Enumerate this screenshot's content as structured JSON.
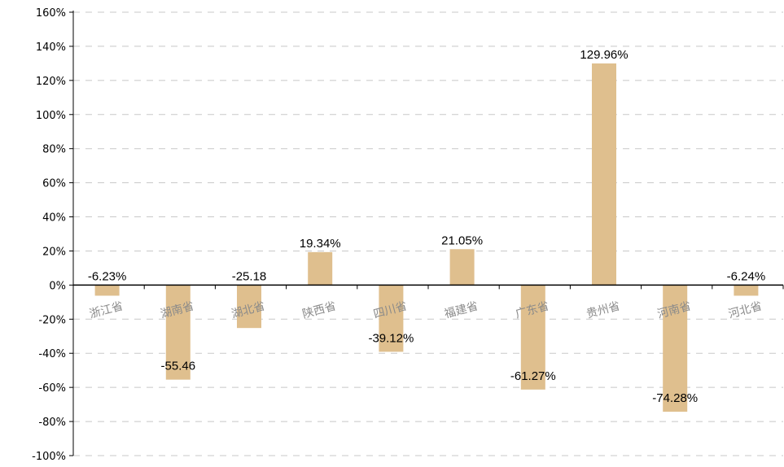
{
  "chart_data": {
    "type": "bar",
    "categories": [
      "浙江省",
      "湖南省",
      "湖北省",
      "陕西省",
      "四川省",
      "福建省",
      "广东省",
      "贵州省",
      "河南省",
      "河北省"
    ],
    "values": [
      -6.23,
      -55.46,
      -25.18,
      19.34,
      -39.12,
      21.05,
      -61.27,
      129.96,
      -74.28,
      -6.24
    ],
    "data_labels": [
      "-6.23%",
      "-55.46",
      "-25.18",
      "19.34%",
      "-39.12%",
      "21.05%",
      "-61.27%",
      "129.96%",
      "-74.28%",
      "-6.24%"
    ],
    "ylim": [
      -100,
      160
    ],
    "y_ticks": [
      "160%",
      "140%",
      "120%",
      "100%",
      "80%",
      "60%",
      "40%",
      "20%",
      "0%",
      "-20%",
      "-40%",
      "-60%",
      "-80%",
      "-100%"
    ],
    "y_tick_values": [
      160,
      140,
      120,
      100,
      80,
      60,
      40,
      20,
      0,
      -20,
      -40,
      -60,
      -80,
      -100
    ],
    "grid": true,
    "title": "",
    "xlabel": "",
    "ylabel": "",
    "bar_color": "#dfbf8e",
    "grid_color": "#c8c8c8"
  }
}
